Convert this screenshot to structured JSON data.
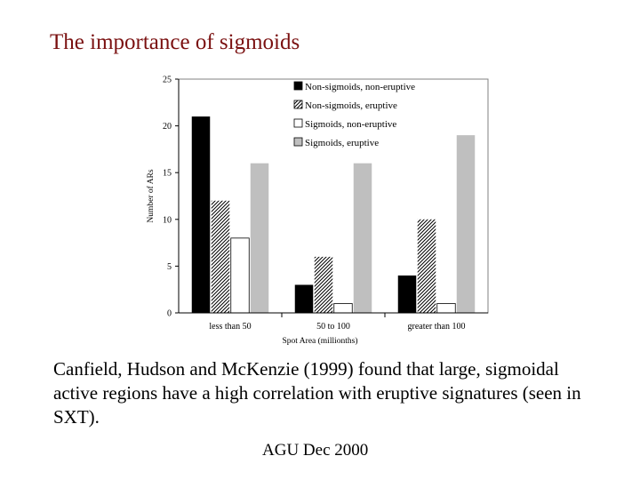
{
  "slide": {
    "title": "The importance of sigmoids",
    "caption": "Canfield, Hudson and McKenzie (1999) found that large, sigmoidal active regions have a high correlation with eruptive signatures (seen in SXT).",
    "footer": "AGU  Dec 2000"
  },
  "chart_data": {
    "type": "bar",
    "categories": [
      "less than 50",
      "50 to 100",
      "greater than 100"
    ],
    "series": [
      {
        "name": "Non-sigmoids, non-eruptive",
        "values": [
          21,
          3,
          4
        ],
        "fill": "black"
      },
      {
        "name": "Non-sigmoids, eruptive",
        "values": [
          12,
          6,
          10
        ],
        "fill": "hatch"
      },
      {
        "name": "Sigmoids, non-eruptive",
        "values": [
          8,
          1,
          1
        ],
        "fill": "white"
      },
      {
        "name": "Sigmoids, eruptive",
        "values": [
          16,
          16,
          19
        ],
        "fill": "gray"
      }
    ],
    "xlabel": "Spot Area (millionths)",
    "ylabel": "Number of ARs",
    "ylim": [
      0,
      25
    ],
    "yticks": [
      0,
      5,
      10,
      15,
      20,
      25
    ],
    "grid": false,
    "legend": "top-right",
    "colors": {
      "black": "#000000",
      "gray": "#bfbfbf",
      "white": "#ffffff"
    }
  }
}
